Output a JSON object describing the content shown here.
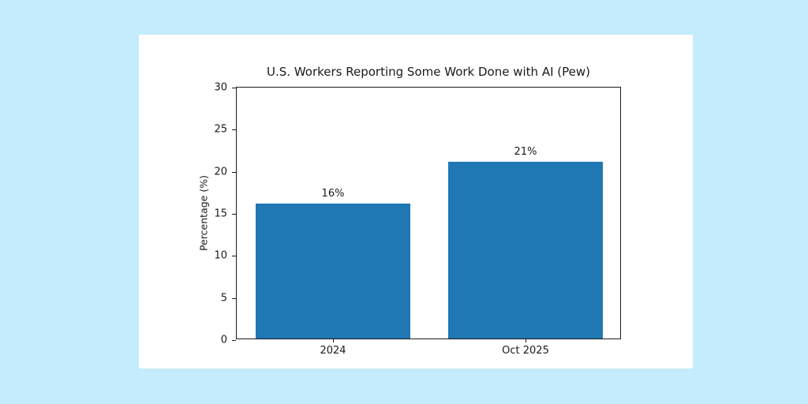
{
  "canvas": {
    "background_color": "#c5ecfc",
    "panel_color": "#ffffff"
  },
  "chart_data": {
    "type": "bar",
    "title": "U.S. Workers Reporting Some Work Done with AI (Pew)",
    "categories": [
      "2024",
      "Oct 2025"
    ],
    "values": [
      16,
      21
    ],
    "bar_labels": [
      "16%",
      "21%"
    ],
    "xlabel": "",
    "ylabel": "Percentage (%)",
    "ylim": [
      0,
      30
    ],
    "yticks": [
      0,
      5,
      10,
      15,
      20,
      25,
      30
    ],
    "bar_color": "#1f77b4",
    "axis_color": "#1a1a1a",
    "grid": false,
    "legend_position": "none"
  }
}
